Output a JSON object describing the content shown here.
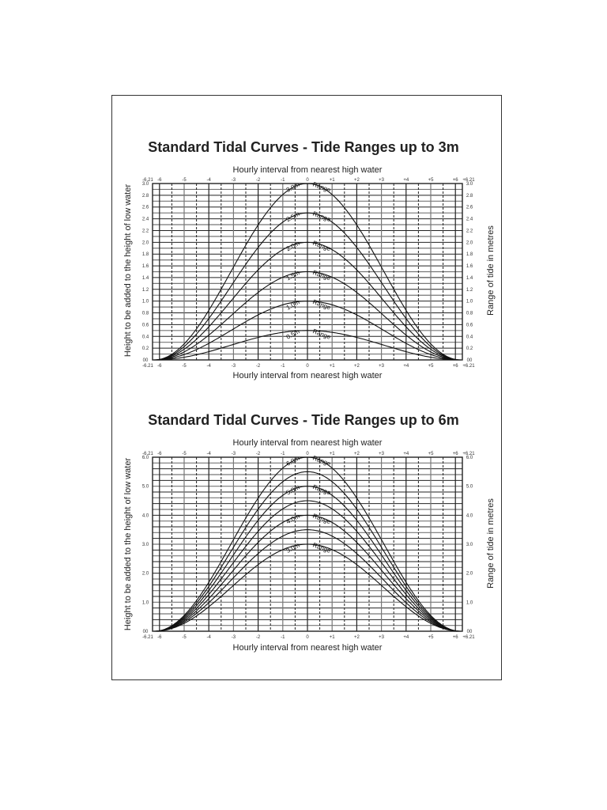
{
  "colors": {
    "line": "#111111",
    "grid_major": "#222222",
    "grid_minor": "#777777",
    "border": "#333333"
  },
  "chart_data": [
    {
      "type": "line",
      "title": "Standard Tidal Curves - Tide Ranges up to 3m",
      "xlabel_top": "Hourly interval from nearest high water",
      "xlabel_bottom": "Hourly interval from nearest high water",
      "ylabel_left": "Height to be added to the height of low water",
      "ylabel_right": "Range of tide in metres",
      "x_ticks": [
        "-6.21",
        "-6",
        "-5",
        "-4",
        "-3",
        "-2",
        "-1",
        "0",
        "+1",
        "+2",
        "+3",
        "+4",
        "+5",
        "+6",
        "+6.21"
      ],
      "xlim": [
        -6.21,
        6.21
      ],
      "y_ticks": [
        "00",
        "0.2",
        "0.4",
        "0.6",
        "0.8",
        "1.0",
        "1.2",
        "1.4",
        "1.6",
        "1.8",
        "2.0",
        "2.2",
        "2.4",
        "2.6",
        "2.8",
        "3.0"
      ],
      "ylim": [
        0,
        3.0
      ],
      "grid": true,
      "series": [
        {
          "name": "0.5m Range",
          "range": 0.5,
          "label": "0.5m",
          "suffix": "Range"
        },
        {
          "name": "1.0m Range",
          "range": 1.0,
          "label": "1.0m",
          "suffix": "Range"
        },
        {
          "name": "1.5m Range",
          "range": 1.5,
          "label": "1.5m",
          "suffix": "Range"
        },
        {
          "name": "2.0m Range",
          "range": 2.0,
          "label": "2.0m",
          "suffix": "Range"
        },
        {
          "name": "2.5m Range",
          "range": 2.5,
          "label": "2.5m",
          "suffix": "Range"
        },
        {
          "name": "3.0m Range",
          "range": 3.0,
          "label": "3.0m",
          "suffix": "Range"
        }
      ],
      "x": [
        -6.21,
        -6,
        -5,
        -4,
        -3,
        -2,
        -1,
        0,
        1,
        2,
        3,
        4,
        5,
        6,
        6.21
      ],
      "series_values_note": "Each curve peaks at its range at 0 h and falls to 0 at ±6.21 h (cosine shape)"
    },
    {
      "type": "line",
      "title": "Standard Tidal Curves - Tide Ranges up to 6m",
      "xlabel_top": "Hourly interval from nearest high water",
      "xlabel_bottom": "Hourly interval from nearest high water",
      "ylabel_left": "Height to be added to the height of low water",
      "ylabel_right": "Range of tide in metres",
      "x_ticks": [
        "-6.21",
        "-6",
        "-5",
        "-4",
        "-3",
        "-2",
        "-1",
        "0",
        "+1",
        "+2",
        "+3",
        "+4",
        "+5",
        "+6",
        "+6.21"
      ],
      "xlim": [
        -6.21,
        6.21
      ],
      "y_ticks": [
        "00",
        "1.0",
        "2.0",
        "3.0",
        "4.0",
        "5.0",
        "6.0"
      ],
      "ylim": [
        0,
        6.0
      ],
      "grid": true,
      "series": [
        {
          "name": "3.0m Range",
          "range": 3.0,
          "label": "3.0m",
          "suffix": "Range"
        },
        {
          "name": "3.5m",
          "range": 3.5,
          "label": "",
          "suffix": ""
        },
        {
          "name": "4.0m Range",
          "range": 4.0,
          "label": "4.0m",
          "suffix": "Range"
        },
        {
          "name": "4.5m",
          "range": 4.5,
          "label": "",
          "suffix": ""
        },
        {
          "name": "5.0m Range",
          "range": 5.0,
          "label": "5.0m",
          "suffix": "Range"
        },
        {
          "name": "5.5m",
          "range": 5.5,
          "label": "",
          "suffix": ""
        },
        {
          "name": "6.0m Range",
          "range": 6.0,
          "label": "6.0m",
          "suffix": "Range"
        }
      ],
      "x": [
        -6.21,
        -6,
        -5,
        -4,
        -3,
        -2,
        -1,
        0,
        1,
        2,
        3,
        4,
        5,
        6,
        6.21
      ]
    }
  ]
}
